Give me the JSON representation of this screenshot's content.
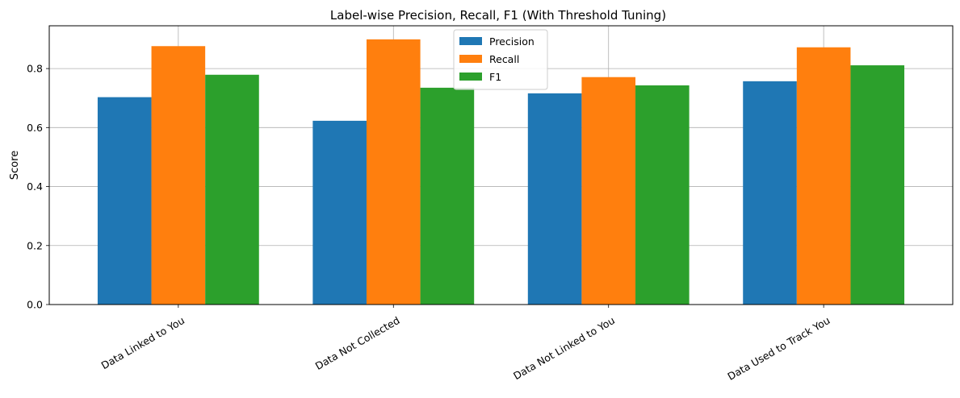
{
  "chart_data": {
    "type": "bar",
    "title": "Label-wise Precision, Recall, F1 (With Threshold Tuning)",
    "xlabel": "",
    "ylabel": "Score",
    "categories": [
      "Data Linked to You",
      "Data Not Collected",
      "Data Not Linked to You",
      "Data Used to Track You"
    ],
    "series": [
      {
        "name": "Precision",
        "values": [
          0.703,
          0.623,
          0.716,
          0.757
        ],
        "color": "#1f77b4"
      },
      {
        "name": "Recall",
        "values": [
          0.876,
          0.899,
          0.771,
          0.872
        ],
        "color": "#ff7f0e"
      },
      {
        "name": "F1",
        "values": [
          0.779,
          0.735,
          0.743,
          0.811
        ],
        "color": "#2ca02c"
      }
    ],
    "ylim": [
      0,
      0.945
    ],
    "yticks": [
      "0.0",
      "0.2",
      "0.4",
      "0.6",
      "0.8"
    ],
    "grid": true,
    "legend_position": "top-center",
    "xtick_rotation": "30 degrees"
  }
}
